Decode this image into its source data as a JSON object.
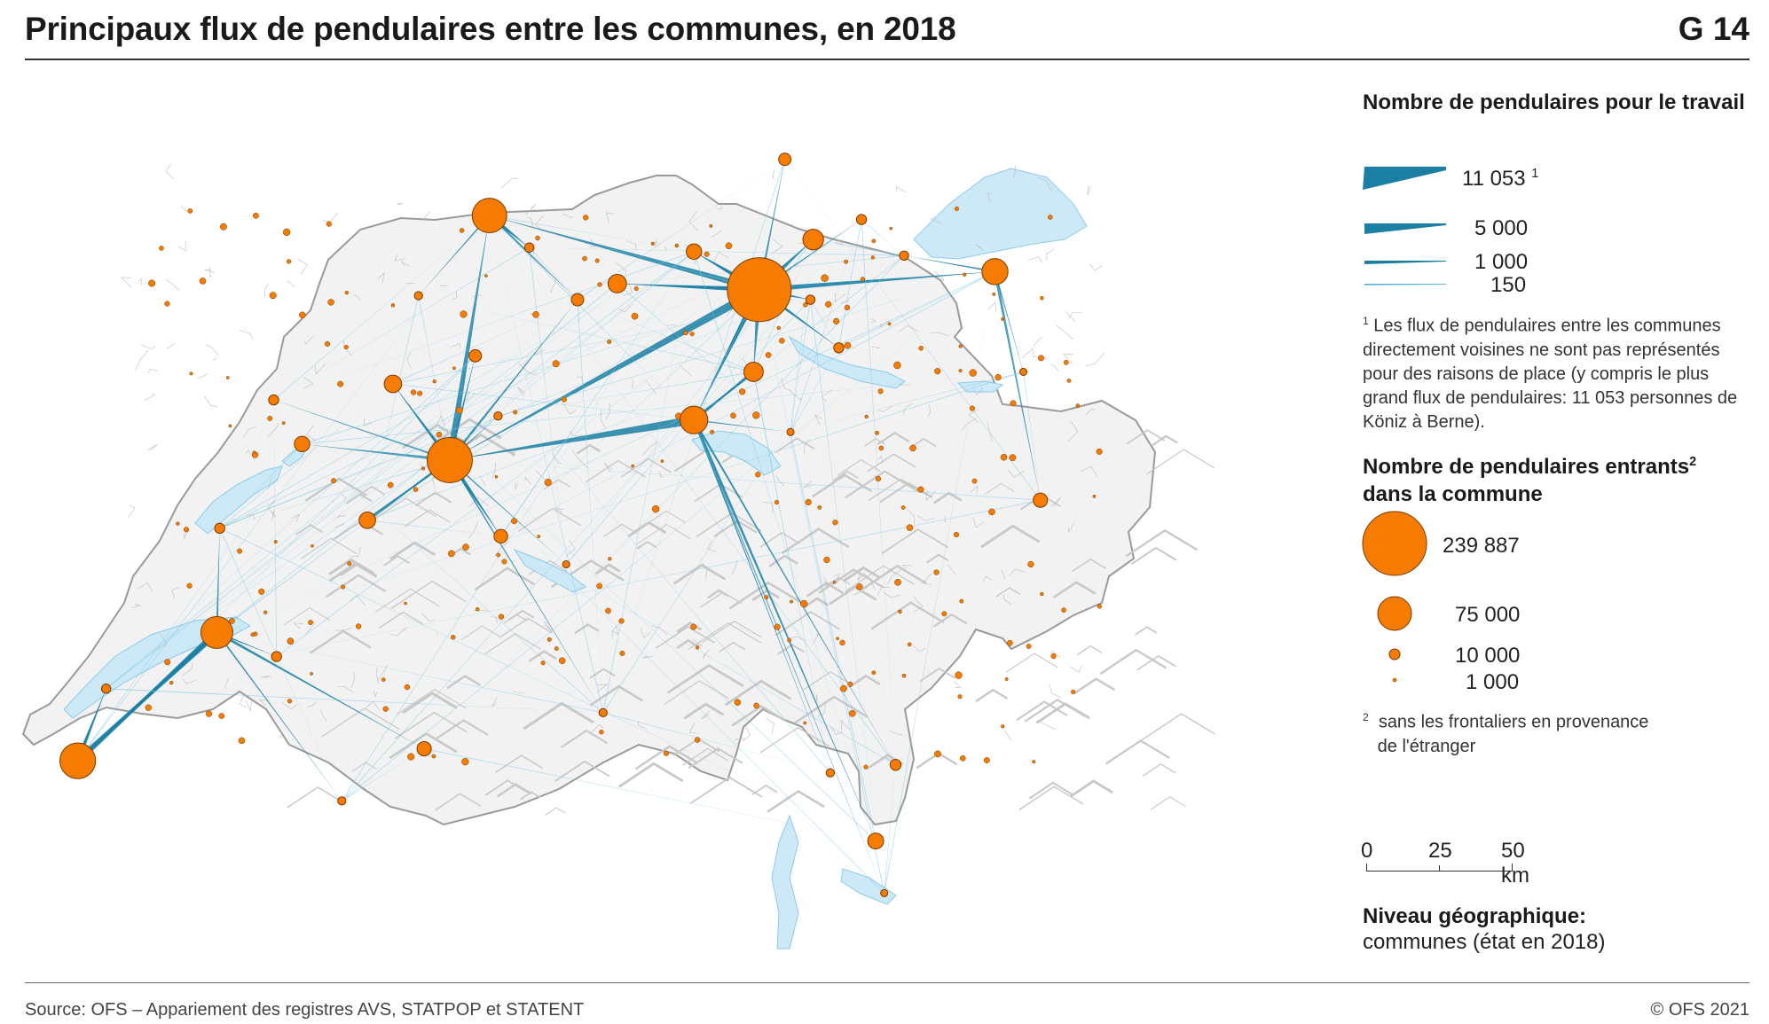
{
  "header": {
    "title": "Principaux flux de pendulaires entre les communes, en 2018",
    "number": "G 14"
  },
  "legend": {
    "flows_title": "Nombre de pendulaires pour le travail",
    "flow_items": [
      {
        "value": "11 053",
        "sup": "1",
        "width": 11053
      },
      {
        "value": "5 000",
        "sup": "",
        "width": 5000
      },
      {
        "value": "1 000",
        "sup": "",
        "width": 1000
      },
      {
        "value": "150",
        "sup": "",
        "width": 150
      }
    ],
    "flows_note_marker": "1",
    "flows_note": "Les flux de pendulaires entre les communes directement voisines ne sont pas représentés pour des raisons de place (y compris le plus grand flux de pendulaires: 11 053 personnes de Köniz à Berne).",
    "incoming_title": "Nombre de pendulaires entrants",
    "incoming_title_sup": "2",
    "incoming_title_line2": "dans la commune",
    "circle_items": [
      {
        "value": "239 887",
        "count": 239887
      },
      {
        "value": "75 000",
        "count": 75000
      },
      {
        "value": "10 000",
        "count": 10000
      },
      {
        "value": "1 000",
        "count": 1000
      }
    ],
    "incoming_note_marker": "2",
    "incoming_note_line1": "sans les frontaliers en provenance",
    "incoming_note_line2": "de l'étranger"
  },
  "scale_bar": {
    "ticks": [
      "0",
      "25",
      "50 km"
    ]
  },
  "geo_level": {
    "label": "Niveau géographique:",
    "value": "communes (état en 2018)"
  },
  "footer": {
    "source": "Source: OFS – Appariement des registres AVS, STATPOP et STATENT",
    "copyright": "© OFS 2021"
  },
  "colors": {
    "flow": "#1a7fa3",
    "flow_light": "#7fc8e3",
    "node": "#f57c00",
    "node_stroke": "#7a3a00",
    "lake": "#cde9f7",
    "land": "#f2f2f2"
  },
  "map_data": {
    "nodes": [
      {
        "id": "zurich",
        "lon": 8.54,
        "lat": 47.375,
        "count": 239887
      },
      {
        "id": "geneve",
        "lon": 6.14,
        "lat": 46.2,
        "count": 75000
      },
      {
        "id": "basel",
        "lon": 7.59,
        "lat": 47.56,
        "count": 70000
      },
      {
        "id": "bern",
        "lon": 7.45,
        "lat": 46.95,
        "count": 120000
      },
      {
        "id": "lausanne",
        "lon": 6.63,
        "lat": 46.52,
        "count": 60000
      },
      {
        "id": "stgallen",
        "lon": 9.37,
        "lat": 47.42,
        "count": 40000
      },
      {
        "id": "luzern",
        "lon": 8.31,
        "lat": 47.05,
        "count": 45000
      },
      {
        "id": "winterthur",
        "lon": 8.73,
        "lat": 47.5,
        "count": 25000
      },
      {
        "id": "aarau",
        "lon": 8.04,
        "lat": 47.39,
        "count": 20000
      },
      {
        "id": "biel",
        "lon": 7.25,
        "lat": 47.14,
        "count": 18000
      },
      {
        "id": "zug",
        "lon": 8.52,
        "lat": 47.17,
        "count": 22000
      },
      {
        "id": "fribourg",
        "lon": 7.16,
        "lat": 46.8,
        "count": 16000
      },
      {
        "id": "neuchatel",
        "lon": 6.93,
        "lat": 46.99,
        "count": 14000
      },
      {
        "id": "chur",
        "lon": 9.53,
        "lat": 46.85,
        "count": 12000
      },
      {
        "id": "lugano",
        "lon": 8.95,
        "lat": 46.0,
        "count": 15000
      },
      {
        "id": "sion",
        "lon": 7.36,
        "lat": 46.23,
        "count": 12000
      },
      {
        "id": "thun",
        "lon": 7.63,
        "lat": 46.76,
        "count": 11000
      },
      {
        "id": "schaffhausen",
        "lon": 8.63,
        "lat": 47.7,
        "count": 9000
      },
      {
        "id": "solothurn",
        "lon": 7.54,
        "lat": 47.21,
        "count": 9000
      },
      {
        "id": "olten",
        "lon": 7.9,
        "lat": 47.35,
        "count": 9000
      },
      {
        "id": "baden",
        "lon": 8.31,
        "lat": 47.47,
        "count": 14000
      },
      {
        "id": "bellinzona",
        "lon": 9.02,
        "lat": 46.19,
        "count": 7000
      },
      {
        "id": "yverdon",
        "lon": 6.64,
        "lat": 46.78,
        "count": 6000
      },
      {
        "id": "laChaux",
        "lon": 6.83,
        "lat": 47.1,
        "count": 6000
      },
      {
        "id": "vevey",
        "lon": 6.84,
        "lat": 46.46,
        "count": 6000
      },
      {
        "id": "nyon",
        "lon": 6.24,
        "lat": 46.38,
        "count": 5000
      },
      {
        "id": "frauenfeld",
        "lon": 8.9,
        "lat": 47.55,
        "count": 6000
      },
      {
        "id": "rapperswil",
        "lon": 8.82,
        "lat": 47.23,
        "count": 6000
      },
      {
        "id": "martigny",
        "lon": 7.07,
        "lat": 46.1,
        "count": 4000
      },
      {
        "id": "delemont",
        "lon": 7.34,
        "lat": 47.36,
        "count": 4000
      },
      {
        "id": "burgdorf",
        "lon": 7.62,
        "lat": 47.06,
        "count": 4000
      },
      {
        "id": "liestal",
        "lon": 7.73,
        "lat": 47.48,
        "count": 5000
      },
      {
        "id": "brig",
        "lon": 7.99,
        "lat": 46.32,
        "count": 4000
      },
      {
        "id": "locarno",
        "lon": 8.79,
        "lat": 46.17,
        "count": 4000
      },
      {
        "id": "mendrisio",
        "lon": 8.98,
        "lat": 45.87,
        "count": 3000
      },
      {
        "id": "wil",
        "lon": 9.05,
        "lat": 47.46,
        "count": 5000
      },
      {
        "id": "buchs",
        "lon": 9.47,
        "lat": 47.17,
        "count": 3000
      },
      {
        "id": "schwyz",
        "lon": 8.65,
        "lat": 47.02,
        "count": 3000
      },
      {
        "id": "uster",
        "lon": 8.72,
        "lat": 47.35,
        "count": 5000
      },
      {
        "id": "interlaken",
        "lon": 7.86,
        "lat": 46.69,
        "count": 3000
      }
    ]
  }
}
